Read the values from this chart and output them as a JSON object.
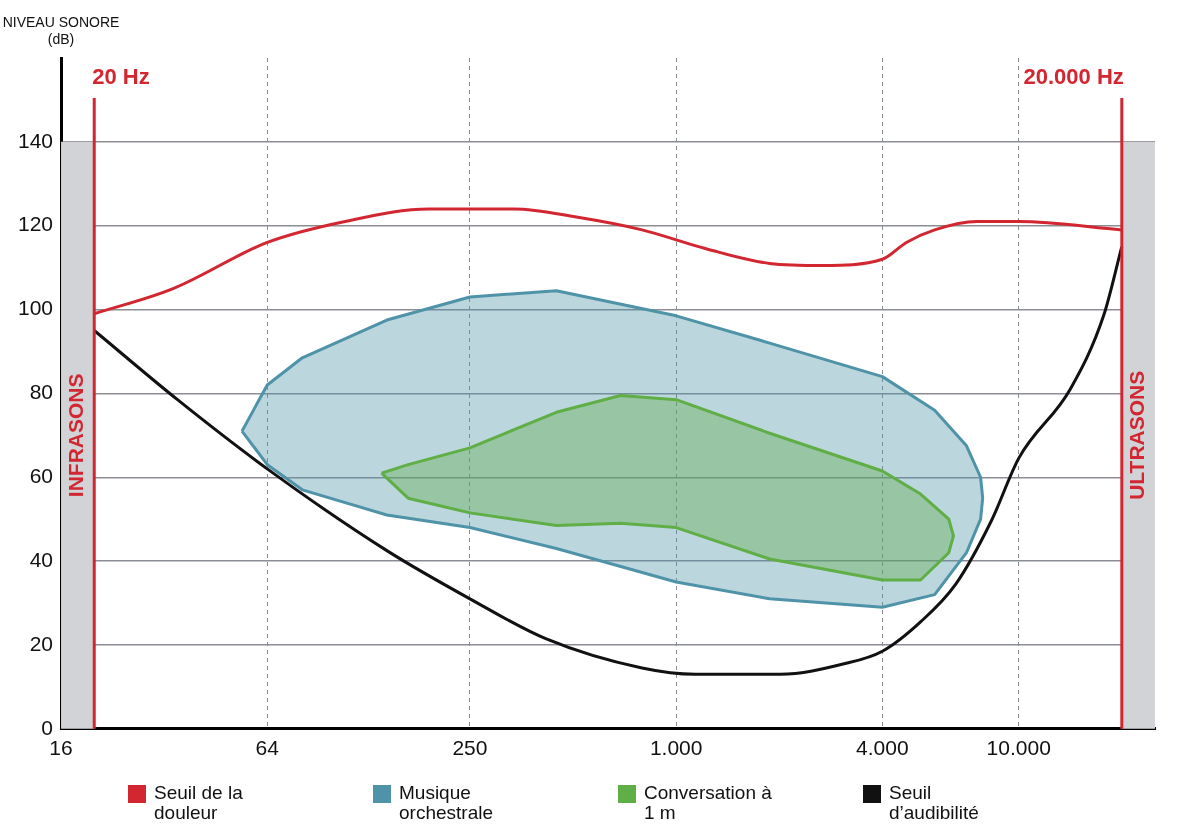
{
  "chart_data": {
    "type": "line",
    "ylabel": "NIVEAU SONORE (dB)",
    "xlim": [
      16,
      25000
    ],
    "log": "x",
    "xticks": [
      16,
      64,
      250,
      {
        "value": 1000,
        "label": "1.000"
      },
      {
        "value": 4000,
        "label": "4.000"
      },
      {
        "value": 10000,
        "label": "10.000"
      }
    ],
    "ylim": [
      0,
      160
    ],
    "yticks": [
      0,
      20,
      40,
      60,
      80,
      100,
      120,
      140
    ],
    "grid": true,
    "legend": "bottom",
    "marker": "none",
    "series": [
      {
        "name": "Seuil de la douleur",
        "color": "#d22630",
        "type": "line",
        "x": [
          20,
          34,
          64,
          108,
          190,
          336,
          516,
          795,
          1222,
          1875,
          2681,
          4000,
          4700,
          5684,
          7560,
          10000,
          20000
        ],
        "values": [
          99,
          105,
          116,
          121,
          124,
          124,
          122,
          119,
          114.5,
          111,
          110.5,
          112,
          116,
          119,
          121,
          121,
          119
        ]
      },
      {
        "name": "Musique orchestrale",
        "color": "#4f93a8",
        "type": "area",
        "x": [
          54,
          64,
          81,
          143,
          250,
          447,
          1000,
          1875,
          4000,
          5684,
          7040,
          7740,
          7850,
          7740,
          7040,
          5684,
          4000,
          1875,
          1000,
          447,
          250,
          143,
          81,
          64,
          54
        ],
        "values": [
          71,
          82,
          88.5,
          97.5,
          103,
          104.5,
          98.5,
          92,
          84,
          76,
          67.5,
          60,
          55,
          50,
          42,
          32,
          29,
          31,
          35,
          43,
          48,
          51,
          57,
          63,
          71
        ]
      },
      {
        "name": "Conversation à 1 m",
        "color": "#5fae46",
        "type": "area",
        "x": [
          138,
          165,
          250,
          447,
          688,
          1000,
          1875,
          4000,
          5170,
          6250,
          6450,
          6250,
          5170,
          4000,
          1875,
          1000,
          688,
          447,
          250,
          165,
          138
        ],
        "values": [
          61,
          63,
          67,
          75.5,
          79.5,
          78.5,
          70.5,
          61.5,
          56,
          50,
          46,
          42,
          35.5,
          35.5,
          40.5,
          48,
          49,
          48.5,
          51.5,
          55,
          61
        ]
      },
      {
        "name": "Seuil d’audibilité",
        "color": "#111111",
        "type": "line",
        "x": [
          20,
          35,
          64,
          143,
          250,
          416,
          795,
          1137,
          2014,
          3093,
          4000,
          5170,
          6550,
          8310,
          10000,
          14140,
          17690,
          20000
        ],
        "values": [
          95,
          78.5,
          62,
          42.5,
          31,
          21.5,
          14.5,
          13,
          13,
          15.5,
          18.5,
          25.5,
          34.5,
          49.5,
          64.5,
          81,
          98.5,
          115
        ]
      }
    ],
    "ref_lines": [
      {
        "axis": "x",
        "value": 20,
        "label": "20 Hz",
        "color": "#d22630"
      },
      {
        "axis": "x",
        "value": 20000,
        "label": "20.000 Hz",
        "color": "#d22630"
      }
    ],
    "bands": [
      {
        "axis": "x",
        "from": 16,
        "to": 20,
        "label": "INFRASONS",
        "color": "#d1d3d7"
      },
      {
        "axis": "x",
        "from": 20000,
        "to": 25000,
        "label": "ULTRASONS",
        "color": "#d1d3d7"
      }
    ]
  }
}
